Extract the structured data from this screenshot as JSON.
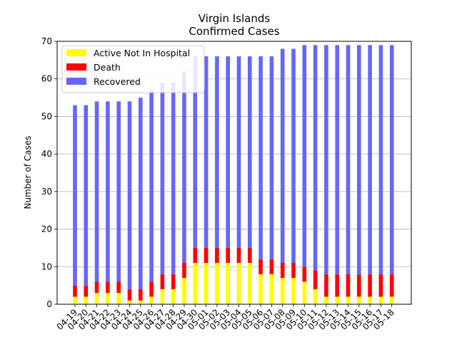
{
  "chart_data": {
    "type": "bar",
    "stacked": true,
    "title_line1": "Virgin Islands",
    "title_line2": "Confirmed Cases",
    "xlabel": "",
    "ylabel": "Number of Cases",
    "ylim": [
      0,
      70
    ],
    "yticks": [
      0,
      10,
      20,
      30,
      40,
      50,
      60,
      70
    ],
    "grid": "horizontal",
    "legend_position": "top-left",
    "categories": [
      "04-19",
      "04-20",
      "04-21",
      "04-22",
      "04-23",
      "04-24",
      "04-25",
      "04-26",
      "04-27",
      "04-28",
      "04-29",
      "04-30",
      "05-01",
      "05-02",
      "05-03",
      "05-04",
      "05-05",
      "05-06",
      "05-07",
      "05-08",
      "05-09",
      "05-10",
      "05-11",
      "05-12",
      "05-13",
      "05-14",
      "05-15",
      "05-16",
      "05-17",
      "05-18"
    ],
    "series": [
      {
        "name": "Active Not In Hospital",
        "color": "#ffff00",
        "values": [
          2,
          2,
          3,
          3,
          3,
          1,
          1,
          2,
          4,
          4,
          7,
          11,
          11,
          11,
          11,
          11,
          11,
          8,
          8,
          7,
          7,
          6,
          4,
          2,
          2,
          2,
          2,
          2,
          2,
          2
        ]
      },
      {
        "name": "Death",
        "color": "#ff0000",
        "values": [
          3,
          3,
          3,
          3,
          3,
          3,
          3,
          4,
          4,
          4,
          4,
          4,
          4,
          4,
          4,
          4,
          4,
          4,
          4,
          4,
          4,
          4,
          5,
          6,
          6,
          6,
          6,
          6,
          6,
          6
        ]
      },
      {
        "name": "Recovered",
        "color": "#6666ff",
        "values": [
          48,
          48,
          48,
          48,
          48,
          50,
          51,
          51,
          51,
          51,
          51,
          51,
          51,
          51,
          51,
          51,
          51,
          54,
          54,
          57,
          57,
          59,
          60,
          61,
          61,
          61,
          61,
          61,
          61,
          61
        ]
      }
    ]
  }
}
